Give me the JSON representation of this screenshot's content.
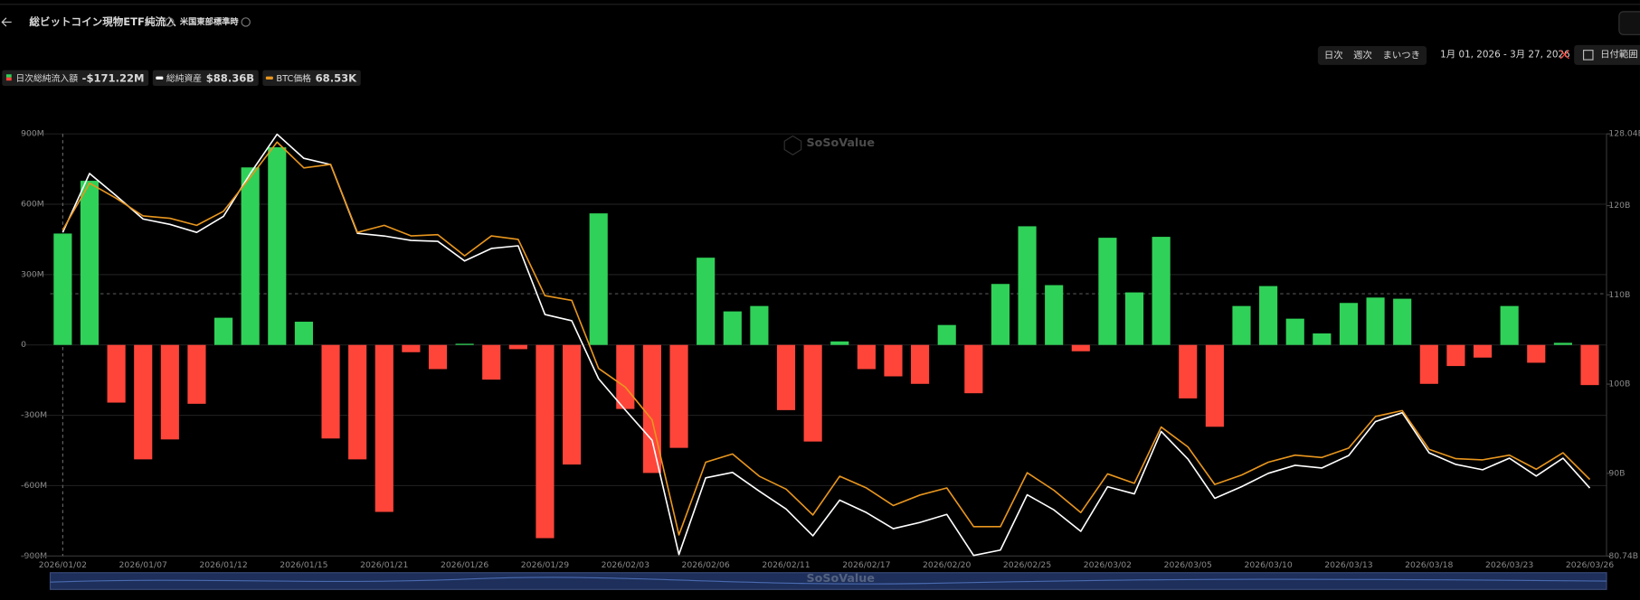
{
  "header": {
    "title": "総ビットコイン現物ETF純流入",
    "timezone": "米国東部標準時",
    "periods": [
      "日次",
      "週次",
      "まいつき"
    ],
    "active_period": 0,
    "date_range": "1月 01, 2026 - 3月 27, 2026",
    "date_button": "日付範囲"
  },
  "chart_data": {
    "type": "combo",
    "categories": [
      "2026/01/02",
      null,
      null,
      "2026/01/07",
      null,
      null,
      "2026/01/12",
      null,
      null,
      "2026/01/15",
      null,
      null,
      "2026/01/21",
      null,
      null,
      "2026/01/26",
      null,
      null,
      "2026/01/29",
      null,
      null,
      "2026/02/03",
      null,
      null,
      "2026/02/06",
      null,
      null,
      "2026/02/11",
      null,
      null,
      "2026/02/17",
      null,
      null,
      "2026/02/20",
      null,
      null,
      "2026/02/25",
      null,
      null,
      "2026/03/02",
      null,
      null,
      "2026/03/05",
      null,
      null,
      "2026/03/10",
      null,
      null,
      "2026/03/13",
      null,
      null,
      "2026/03/18",
      null,
      null,
      "2026/03/23",
      null,
      null,
      "2026/03/26"
    ],
    "series": [
      {
        "name": "日次総純流入額",
        "type": "bar",
        "latest_label": "-$171.22M",
        "color": "#30d158",
        "negative_color": "#ff453a",
        "values": [
          475,
          700,
          -246,
          -488,
          -403,
          -251,
          116,
          757,
          843,
          99,
          -399,
          -488,
          -712,
          -31,
          -103,
          5,
          -148,
          -18,
          -824,
          -510,
          561,
          -273,
          -546,
          -439,
          372,
          143,
          166,
          -278,
          -412,
          15,
          -103,
          -134,
          -166,
          85,
          -206,
          260,
          506,
          255,
          -27,
          457,
          224,
          461,
          -228,
          -349,
          166,
          251,
          112,
          49,
          179,
          202,
          197,
          -166,
          -90,
          -54,
          166,
          -76,
          9,
          -171.22
        ]
      },
      {
        "name": "総純資産",
        "type": "line",
        "axis": "y2",
        "latest_label": "$88.36B",
        "color": "#ffffff",
        "values": [
          117.0,
          123.6,
          121.1,
          118.5,
          117.9,
          117.0,
          118.8,
          123.6,
          128.0,
          125.3,
          124.6,
          116.9,
          116.6,
          116.1,
          116.0,
          113.8,
          115.2,
          115.5,
          107.8,
          107.1,
          100.6,
          97.1,
          93.7,
          80.9,
          89.5,
          90.1,
          88.0,
          86.0,
          83.0,
          87.0,
          85.6,
          83.8,
          84.5,
          85.4,
          80.8,
          81.4,
          87.6,
          85.9,
          83.5,
          88.5,
          87.7,
          94.7,
          91.6,
          87.2,
          88.5,
          90.0,
          90.9,
          90.6,
          92.0,
          95.8,
          96.8,
          92.3,
          91.0,
          90.4,
          91.7,
          89.7,
          91.7,
          88.36
        ]
      },
      {
        "name": "BTC価格",
        "type": "line",
        "axis": "y3",
        "latest_label": "68.53K",
        "color": "#e8961e",
        "values": [
          89.8,
          93.8,
          92.5,
          91.0,
          90.8,
          90.2,
          91.4,
          94.3,
          97.3,
          95.1,
          95.4,
          89.6,
          90.2,
          89.3,
          89.4,
          87.6,
          89.3,
          89.0,
          84.2,
          83.8,
          78.0,
          76.4,
          73.6,
          63.8,
          70.0,
          70.7,
          68.8,
          67.7,
          65.5,
          68.8,
          67.8,
          66.3,
          67.2,
          67.8,
          64.5,
          64.5,
          69.1,
          67.6,
          65.7,
          69.0,
          68.2,
          73.0,
          71.3,
          68.1,
          68.9,
          70.0,
          70.6,
          70.4,
          71.2,
          73.9,
          74.4,
          71.1,
          70.3,
          70.2,
          70.6,
          69.4,
          70.8,
          68.53
        ]
      }
    ],
    "ylim": [
      -900,
      900
    ],
    "yticks": [
      {
        "value": 900,
        "label": "900M"
      },
      {
        "value": 600,
        "label": "600M"
      },
      {
        "value": 300,
        "label": "300M"
      },
      0,
      {
        "value": -300,
        "label": "-300M"
      },
      {
        "value": -600,
        "label": "-600M"
      },
      {
        "value": -900,
        "label": "-900M"
      }
    ],
    "y2lim": [
      80.74,
      128.04
    ],
    "y2ticks": [
      {
        "value": 128.04,
        "label": "128.04B"
      },
      {
        "value": 120,
        "label": "120B"
      },
      {
        "value": 110,
        "label": "110B"
      },
      {
        "value": 100,
        "label": "100B"
      },
      {
        "value": 90,
        "label": "90B"
      },
      {
        "value": 80.74,
        "label": "80.74B"
      }
    ],
    "y3lim": [
      62,
      98
    ],
    "grid": true,
    "watermark": "SoSoValue"
  }
}
